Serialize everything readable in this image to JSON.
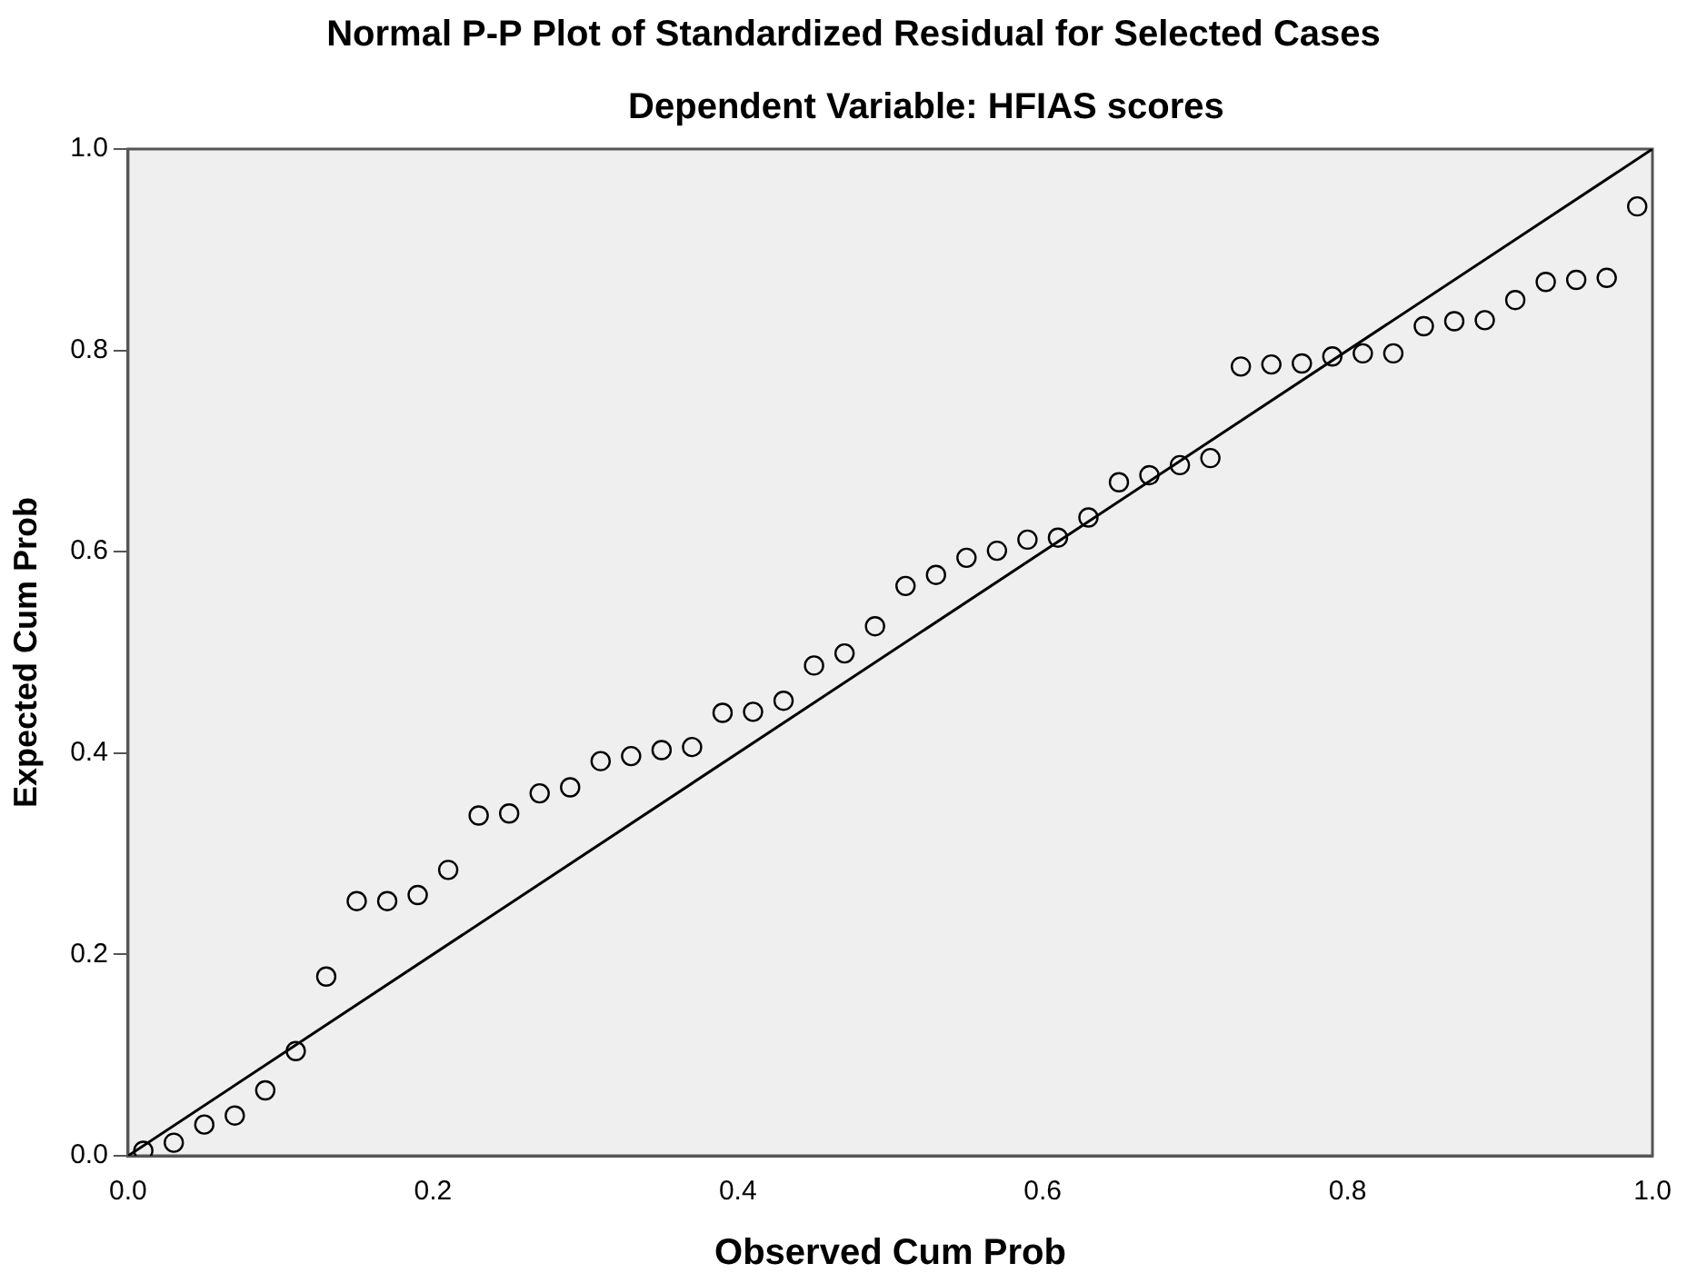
{
  "chart_data": {
    "type": "scatter",
    "title": "Normal P-P Plot of Standardized Residual for Selected Cases",
    "subtitle": "Dependent Variable: HFIAS scores",
    "xlabel": "Observed Cum Prob",
    "ylabel": "Expected Cum Prob",
    "xlim": [
      0,
      1
    ],
    "ylim": [
      0,
      1
    ],
    "xticks": [
      {
        "value": 0,
        "label": "0.0"
      },
      {
        "value": 0.2,
        "label": "0.2"
      },
      {
        "value": 0.4,
        "label": "0.4"
      },
      {
        "value": 0.6,
        "label": "0.6"
      },
      {
        "value": 0.8,
        "label": "0.8"
      },
      {
        "value": 1,
        "label": "1.0"
      }
    ],
    "yticks": [
      {
        "value": 0,
        "label": "0.0"
      },
      {
        "value": 0.2,
        "label": "0.2"
      },
      {
        "value": 0.4,
        "label": "0.4"
      },
      {
        "value": 0.6,
        "label": "0.6"
      },
      {
        "value": 0.8,
        "label": "0.8"
      },
      {
        "value": 1,
        "label": "1.0"
      }
    ],
    "grid": false,
    "legend": false,
    "marker": "circle",
    "series": [
      {
        "color": "#000000",
        "x": [
          0.01,
          0.03,
          0.05,
          0.07,
          0.09,
          0.11,
          0.13,
          0.15,
          0.17,
          0.19,
          0.21,
          0.23,
          0.25,
          0.27,
          0.29,
          0.31,
          0.33,
          0.35,
          0.37,
          0.39,
          0.41,
          0.43,
          0.45,
          0.47,
          0.49,
          0.51,
          0.53,
          0.55,
          0.57,
          0.59,
          0.61,
          0.63,
          0.65,
          0.67,
          0.69,
          0.71,
          0.73,
          0.75,
          0.77,
          0.79,
          0.81,
          0.83,
          0.85,
          0.87,
          0.89,
          0.91,
          0.93,
          0.95,
          0.97,
          0.99
        ],
        "values": [
          0.005,
          0.013,
          0.031,
          0.04,
          0.065,
          0.104,
          0.178,
          0.253,
          0.253,
          0.259,
          0.284,
          0.338,
          0.34,
          0.36,
          0.366,
          0.392,
          0.397,
          0.403,
          0.406,
          0.44,
          0.441,
          0.452,
          0.487,
          0.499,
          0.526,
          0.566,
          0.577,
          0.594,
          0.601,
          0.612,
          0.614,
          0.634,
          0.669,
          0.676,
          0.686,
          0.693,
          0.784,
          0.786,
          0.787,
          0.794,
          0.797,
          0.797,
          0.824,
          0.829,
          0.83,
          0.85,
          0.868,
          0.87,
          0.872,
          0.943
        ]
      },
      {
        "type": "line",
        "marker": "none",
        "color": "#000000",
        "x": [
          0,
          1
        ],
        "values": [
          0,
          1
        ]
      }
    ]
  }
}
